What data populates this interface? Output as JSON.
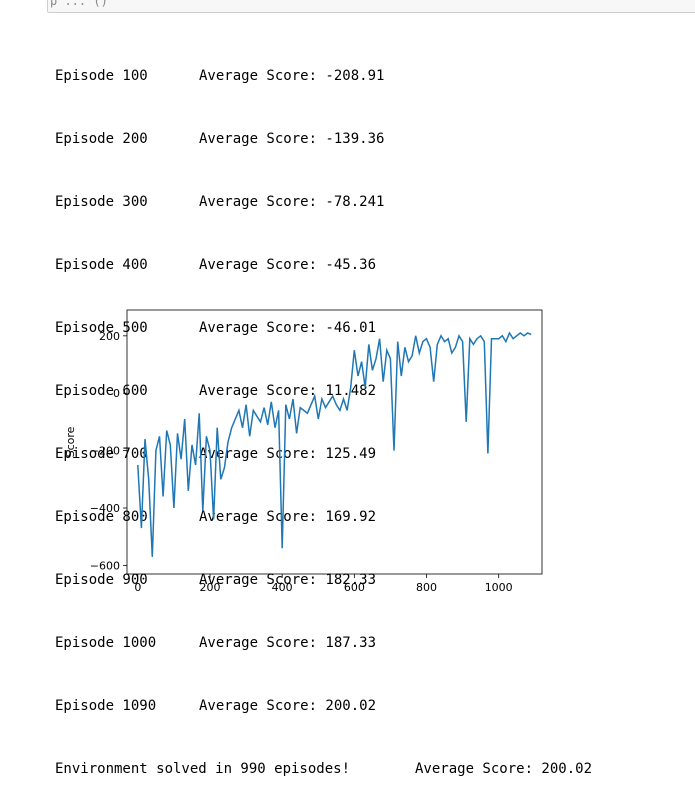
{
  "cell": {
    "prompt_glyph": "ρ ... ()"
  },
  "output_lines": [
    {
      "episode": "Episode 100",
      "score": "Average Score: -208.91"
    },
    {
      "episode": "Episode 200",
      "score": "Average Score: -139.36"
    },
    {
      "episode": "Episode 300",
      "score": "Average Score: -78.241"
    },
    {
      "episode": "Episode 400",
      "score": "Average Score: -45.36"
    },
    {
      "episode": "Episode 500",
      "score": "Average Score: -46.01"
    },
    {
      "episode": "Episode 600",
      "score": "Average Score: 11.482"
    },
    {
      "episode": "Episode 700",
      "score": "Average Score: 125.49"
    },
    {
      "episode": "Episode 800",
      "score": "Average Score: 169.92"
    },
    {
      "episode": "Episode 900",
      "score": "Average Score: 182.33"
    },
    {
      "episode": "Episode 1000",
      "score": "Average Score: 187.33"
    },
    {
      "episode": "Episode 1090",
      "score": "Average Score: 200.02"
    }
  ],
  "final_line": {
    "message": "Environment solved in 990 episodes!",
    "score": "Average Score: 200.02"
  },
  "chart_data": {
    "type": "line",
    "title": "",
    "xlabel": "",
    "ylabel": "Score",
    "xlim": [
      -30,
      1120
    ],
    "ylim": [
      -630,
      290
    ],
    "xticks": [
      0,
      200,
      400,
      600,
      800,
      1000
    ],
    "yticks": [
      200,
      0,
      -200,
      -400,
      -600
    ],
    "ytick_labels": [
      "200",
      "0",
      "−200",
      "−400",
      "−600"
    ],
    "grid": false,
    "line_color": "#1f77b4",
    "series": [
      {
        "x": [
          0,
          10,
          20,
          30,
          40,
          50,
          60,
          70,
          80,
          90,
          100,
          110,
          120,
          130,
          140,
          150,
          160,
          170,
          180,
          190,
          200,
          210,
          220,
          230,
          240,
          250,
          260,
          270,
          280,
          290,
          300,
          310,
          320,
          330,
          340,
          350,
          360,
          370,
          380,
          390,
          400,
          410,
          420,
          430,
          440,
          450,
          460,
          470,
          480,
          490,
          500,
          510,
          520,
          530,
          540,
          550,
          560,
          570,
          580,
          590,
          600,
          610,
          620,
          630,
          640,
          650,
          660,
          670,
          680,
          690,
          700,
          710,
          720,
          730,
          740,
          750,
          760,
          770,
          780,
          790,
          800,
          810,
          820,
          830,
          840,
          850,
          860,
          870,
          880,
          890,
          900,
          910,
          920,
          930,
          940,
          950,
          960,
          970,
          980,
          990,
          1000,
          1010,
          1020,
          1030,
          1040,
          1050,
          1060,
          1070,
          1080,
          1090
        ],
        "y": [
          -250,
          -470,
          -160,
          -300,
          -570,
          -200,
          -150,
          -360,
          -130,
          -180,
          -400,
          -140,
          -230,
          -90,
          -340,
          -180,
          -250,
          -70,
          -410,
          -150,
          -200,
          -440,
          -120,
          -300,
          -260,
          -170,
          -120,
          -90,
          -60,
          -120,
          -40,
          -150,
          -60,
          -80,
          -100,
          -50,
          -110,
          -30,
          -120,
          -60,
          -540,
          -40,
          -90,
          -20,
          -140,
          -50,
          -60,
          -70,
          -40,
          -10,
          -90,
          -20,
          -50,
          -30,
          -10,
          -40,
          -60,
          -20,
          -60,
          20,
          150,
          60,
          110,
          20,
          170,
          80,
          120,
          190,
          40,
          150,
          120,
          -200,
          180,
          60,
          160,
          110,
          130,
          200,
          140,
          180,
          190,
          160,
          40,
          170,
          200,
          180,
          190,
          140,
          160,
          200,
          180,
          -100,
          190,
          170,
          190,
          200,
          180,
          -210,
          190,
          190,
          190,
          200,
          180,
          210,
          190,
          200,
          210,
          200,
          210,
          205
        ]
      }
    ]
  }
}
